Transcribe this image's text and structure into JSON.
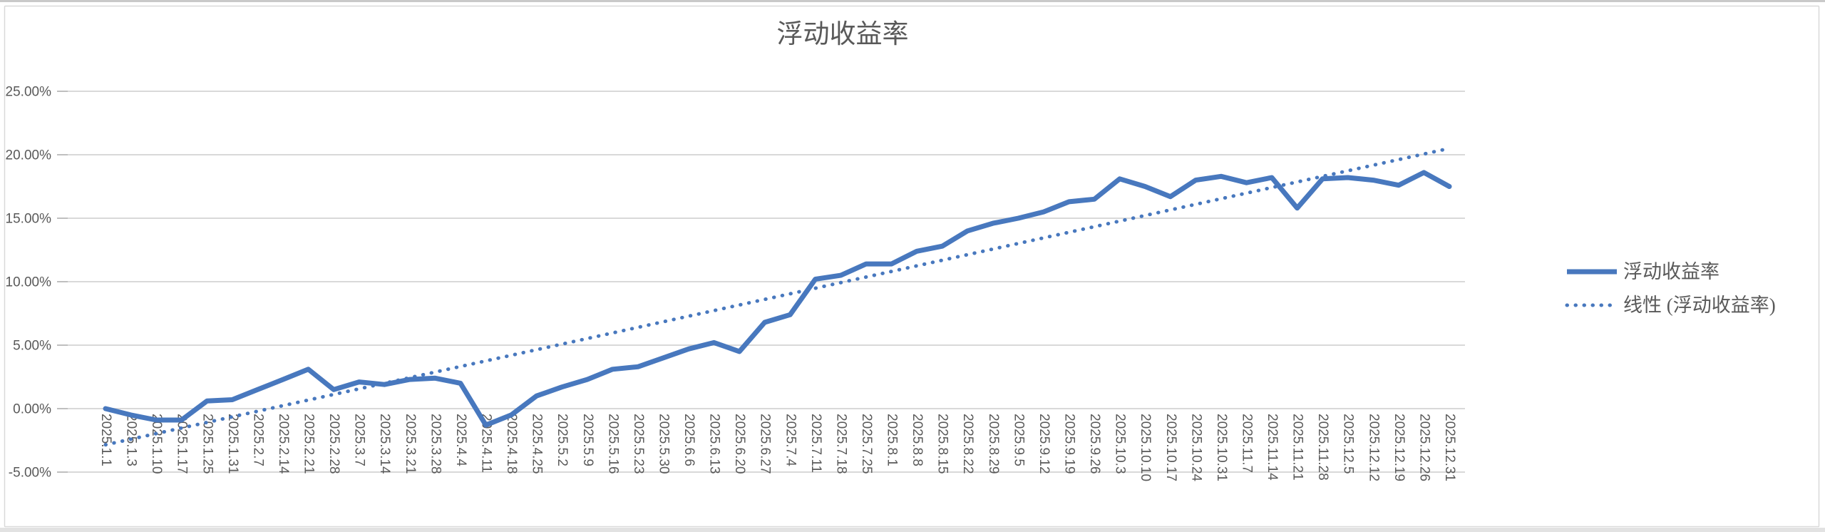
{
  "chart_data": {
    "type": "line",
    "title": "浮动收益率",
    "xlabel": "",
    "ylabel": "",
    "grid": true,
    "legend_position": "right",
    "ylim": [
      -5,
      25
    ],
    "y_axis": {
      "min": -5,
      "max": 25,
      "step": 5,
      "tick_labels": [
        "25.00%",
        "20.00%",
        "15.00%",
        "10.00%",
        "5.00%",
        "0.00%",
        "-5.00%"
      ]
    },
    "categories": [
      "2025.1.1",
      "2025.1.3",
      "2025.1.10",
      "2025.1.17",
      "2025.1.25",
      "2025.1.31",
      "2025.2.7",
      "2025.2.14",
      "2025.2.21",
      "2025.2.28",
      "2025.3.7",
      "2025.3.14",
      "2025.3.21",
      "2025.3.28",
      "2025.4.4",
      "2025.4.11",
      "2025.4.18",
      "2025.4.25",
      "2025.5.2",
      "2025.5.9",
      "2025.5.16",
      "2025.5.23",
      "2025.5.30",
      "2025.6.6",
      "2025.6.13",
      "2025.6.20",
      "2025.6.27",
      "2025.7.4",
      "2025.7.11",
      "2025.7.18",
      "2025.7.25",
      "2025.8.1",
      "2025.8.8",
      "2025.8.15",
      "2025.8.22",
      "2025.8.29",
      "2025.9.5",
      "2025.9.12",
      "2025.9.19",
      "2025.9.26",
      "2025.10.3",
      "2025.10.10",
      "2025.10.17",
      "2025.10.24",
      "2025.10.31",
      "2025.11.7",
      "2025.11.14",
      "2025.11.21",
      "2025.11.28",
      "2025.12.5",
      "2025.12.12",
      "2025.12.19",
      "2025.12.26",
      "2025.12.31"
    ],
    "series": [
      {
        "name": "浮动收益率",
        "style": "solid",
        "unit": "%",
        "values": [
          0.0,
          -0.5,
          -0.9,
          -0.9,
          0.6,
          0.7,
          1.5,
          2.3,
          3.1,
          1.5,
          2.1,
          1.9,
          2.3,
          2.4,
          2.0,
          -1.3,
          -0.5,
          1.0,
          1.7,
          2.3,
          3.1,
          3.3,
          4.0,
          4.7,
          5.2,
          4.5,
          6.8,
          7.4,
          10.2,
          10.5,
          11.4,
          11.4,
          12.4,
          12.8,
          14.0,
          14.6,
          15.0,
          15.5,
          16.3,
          16.5,
          18.1,
          17.5,
          16.7,
          18.0,
          18.3,
          17.8,
          18.2,
          15.8,
          18.1,
          18.2,
          18.0,
          17.6,
          18.6,
          17.5
        ]
      },
      {
        "name": "线性 (浮动收益率)",
        "style": "dotted-trendline",
        "unit": "%",
        "trend_start": -2.85,
        "trend_end": 20.5
      }
    ],
    "colors": {
      "series": "#4878BE",
      "grid": "#D9D9D9",
      "tick": "#BFBFBF",
      "text": "#595959",
      "frame_border": "#D9D9D9",
      "frame_fill": "#FFFFFF"
    }
  }
}
